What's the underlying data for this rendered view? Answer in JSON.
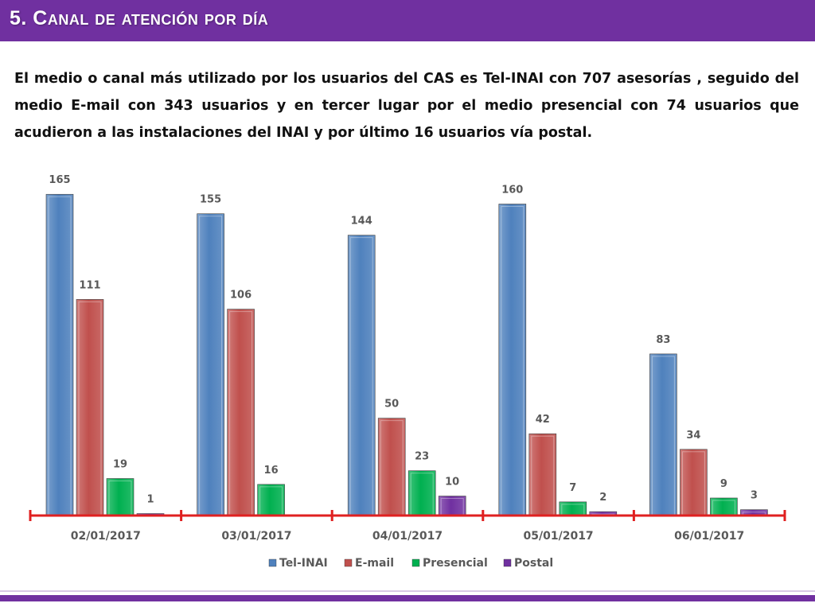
{
  "slide": {
    "title": "5. Canal de atención por día",
    "body": "El medio o canal más utilizado por los usuarios del CAS es Tel-INAI con 707 asesorías , seguido del medio E-mail con 343 usuarios y en tercer lugar por el medio presencial con 74 usuarios que acudieron a las instalaciones del INAI y por último 16 usuarios vía postal."
  },
  "colors": {
    "title_bar": "#7030a0",
    "tel_inai": "#4f81bd",
    "email": "#c0504d",
    "presencial": "#00b050",
    "postal": "#7030a0",
    "axis": "#e02020",
    "label_text": "#595959"
  },
  "chart_data": {
    "type": "bar",
    "title": "",
    "xlabel": "",
    "ylabel": "",
    "categories": [
      "02/01/2017",
      "03/01/2017",
      "04/01/2017",
      "05/01/2017",
      "06/01/2017"
    ],
    "series": [
      {
        "name": "Tel-INAI",
        "color": "#4f81bd",
        "values": [
          165,
          155,
          144,
          160,
          83
        ],
        "labels": [
          "165",
          "155",
          "144",
          "160",
          "83"
        ]
      },
      {
        "name": "E-mail",
        "color": "#c0504d",
        "values": [
          111,
          106,
          50,
          42,
          34
        ],
        "labels": [
          "111",
          "106",
          "50",
          "42",
          "34"
        ]
      },
      {
        "name": "Presencial",
        "color": "#00b050",
        "values": [
          19,
          16,
          23,
          7,
          9
        ],
        "labels": [
          "19",
          "16",
          "23",
          "7",
          "9"
        ]
      },
      {
        "name": "Postal",
        "color": "#7030a0",
        "values": [
          1,
          0,
          10,
          2,
          3
        ],
        "labels": [
          "1",
          "",
          "10",
          "2",
          "3"
        ]
      }
    ],
    "ylim": [
      0,
      170
    ],
    "grid": false,
    "legend": "bottom"
  }
}
